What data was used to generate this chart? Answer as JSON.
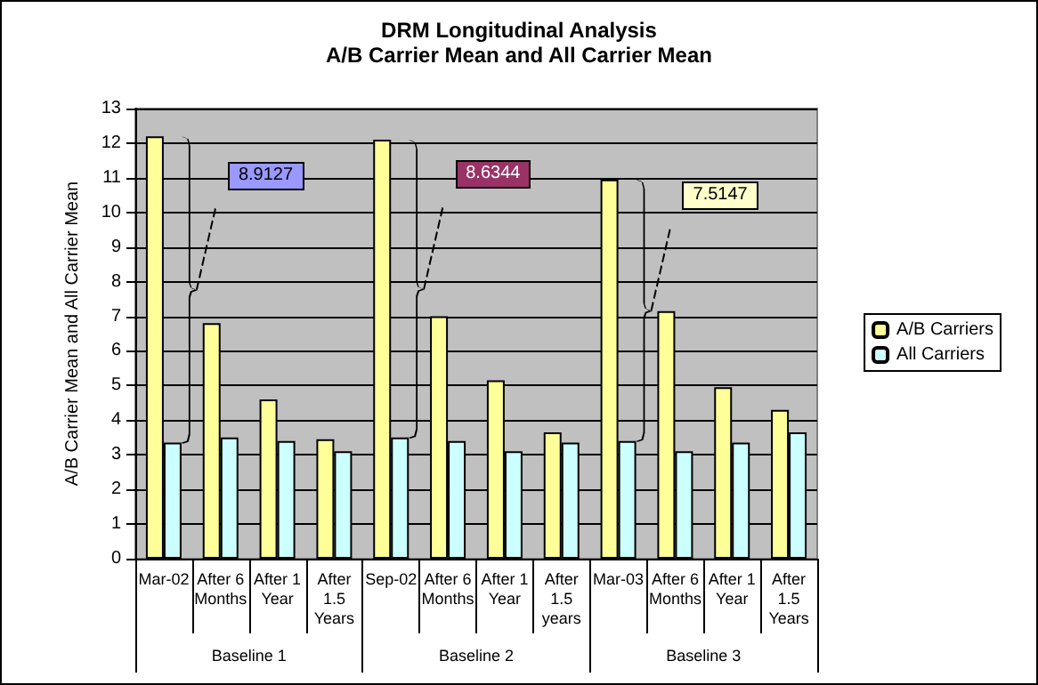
{
  "chart_data": {
    "type": "bar",
    "title": "DRM Longitudinal Analysis",
    "subtitle": "A/B Carrier Mean and All Carrier Mean",
    "ylabel": "A/B Carrier Mean and All Carrier Mean",
    "categories": [
      "Mar-02",
      "After 6\nMonths",
      "After 1\nYear",
      "After\n1.5\nYears",
      "Sep-02",
      "After 6\nMonths",
      "After 1\nYear",
      "After\n1.5\nyears",
      "Mar-03",
      "After 6\nMonths",
      "After 1\nYear",
      "After\n1.5\nYears"
    ],
    "series": [
      {
        "name": "A/B Carriers",
        "color": "#ffff99",
        "values": [
          12.2,
          6.8,
          4.6,
          3.45,
          12.1,
          7.0,
          5.15,
          3.65,
          10.95,
          7.15,
          4.95,
          4.3
        ]
      },
      {
        "name": "All Carriers",
        "color": "#ccffff",
        "values": [
          3.35,
          3.5,
          3.4,
          3.1,
          3.5,
          3.4,
          3.1,
          3.35,
          3.4,
          3.1,
          3.35,
          3.65
        ]
      }
    ],
    "ylim": [
      0,
      13
    ],
    "yticks": [
      0,
      1,
      2,
      3,
      4,
      5,
      6,
      7,
      8,
      9,
      10,
      11,
      12,
      13
    ],
    "grid": "y",
    "legend": "right",
    "annotations": [
      "8.9127",
      "8.6344",
      "7.5147",
      "Baseline 1",
      "Baseline 2",
      "Baseline 3"
    ]
  }
}
